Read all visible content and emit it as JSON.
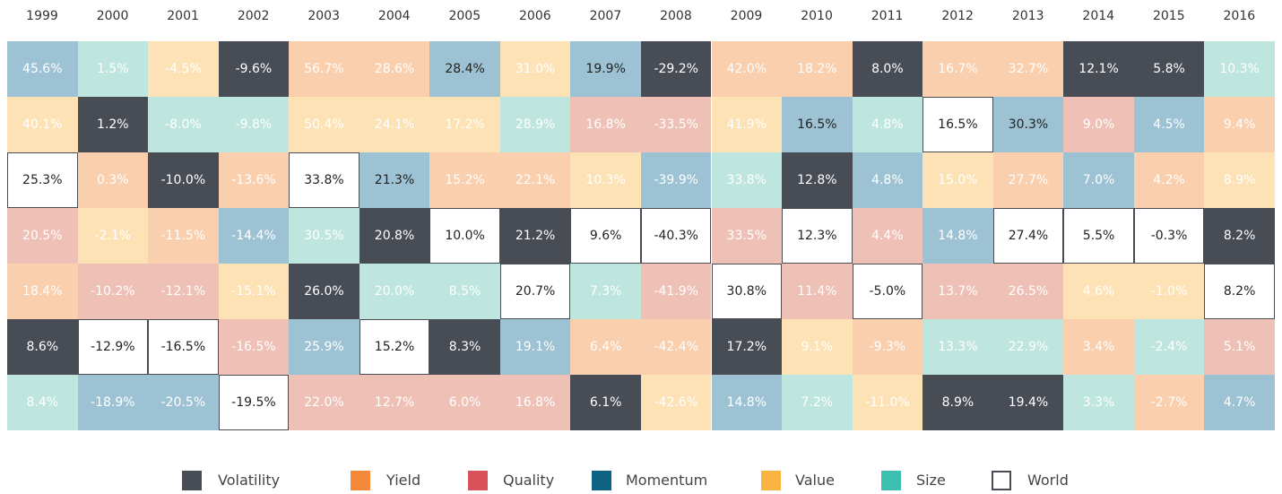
{
  "table": {
    "years": [
      "1999",
      "2000",
      "2001",
      "2002",
      "2003",
      "2004",
      "2005",
      "2006",
      "2007",
      "2008",
      "2009",
      "2010",
      "2011",
      "2012",
      "2013",
      "2014",
      "2015",
      "2016"
    ],
    "legend": [
      {
        "name": "Volatility",
        "color": "#474c55",
        "tint": "#474c55"
      },
      {
        "name": "Yield",
        "color": "#f5883b",
        "tint": "#f9cfae"
      },
      {
        "name": "Quality",
        "color": "#d9525a",
        "tint": "#efc0b6"
      },
      {
        "name": "Momentum",
        "color": "#0f6382",
        "tint": "#9dc2d4"
      },
      {
        "name": "Value",
        "color": "#f9b441",
        "tint": "#fde2b6"
      },
      {
        "name": "Size",
        "color": "#3dbfb2",
        "tint": "#bfe5df"
      },
      {
        "name": "World",
        "color": "#ffffff",
        "tint": "#ffffff"
      }
    ],
    "columns": [
      [
        [
          "45.6%",
          3
        ],
        [
          "40.1%",
          4
        ],
        [
          "25.3%",
          6
        ],
        [
          "20.5%",
          2
        ],
        [
          "18.4%",
          1
        ],
        [
          "8.6%",
          0
        ],
        [
          "8.4%",
          5
        ]
      ],
      [
        [
          "1.5%",
          5
        ],
        [
          "1.2%",
          0
        ],
        [
          "0.3%",
          1
        ],
        [
          "-2.1%",
          4
        ],
        [
          "-10.2%",
          2
        ],
        [
          "-12.9%",
          6
        ],
        [
          "-18.9%",
          3
        ]
      ],
      [
        [
          "-4.5%",
          4
        ],
        [
          "-8.0%",
          5
        ],
        [
          "-10.0%",
          0
        ],
        [
          "-11.5%",
          1
        ],
        [
          "-12.1%",
          2
        ],
        [
          "-16.5%",
          6
        ],
        [
          "-20.5%",
          3
        ]
      ],
      [
        [
          "-9.6%",
          0
        ],
        [
          "-9.8%",
          5
        ],
        [
          "-13.6%",
          1
        ],
        [
          "-14.4%",
          3
        ],
        [
          "-15.1%",
          4
        ],
        [
          "-16.5%",
          2
        ],
        [
          "-19.5%",
          6
        ]
      ],
      [
        [
          "56.7%",
          1
        ],
        [
          "50.4%",
          4
        ],
        [
          "33.8%",
          6
        ],
        [
          "30.5%",
          5
        ],
        [
          "26.0%",
          0
        ],
        [
          "25.9%",
          3
        ],
        [
          "22.0%",
          2
        ]
      ],
      [
        [
          "28.6%",
          1
        ],
        [
          "24.1%",
          4
        ],
        [
          "21.3%",
          3,
          1
        ],
        [
          "20.8%",
          0
        ],
        [
          "20.0%",
          5
        ],
        [
          "15.2%",
          6
        ],
        [
          "12.7%",
          2
        ]
      ],
      [
        [
          "28.4%",
          3,
          1
        ],
        [
          "17.2%",
          4
        ],
        [
          "15.2%",
          1
        ],
        [
          "10.0%",
          6
        ],
        [
          "8.5%",
          5
        ],
        [
          "8.3%",
          0
        ],
        [
          "6.0%",
          2
        ]
      ],
      [
        [
          "31.0%",
          4
        ],
        [
          "28.9%",
          5
        ],
        [
          "22.1%",
          1
        ],
        [
          "21.2%",
          0
        ],
        [
          "20.7%",
          6
        ],
        [
          "19.1%",
          3
        ],
        [
          "16.8%",
          2
        ]
      ],
      [
        [
          "19.9%",
          3,
          1
        ],
        [
          "16.8%",
          2
        ],
        [
          "10.3%",
          4
        ],
        [
          "9.6%",
          6
        ],
        [
          "7.3%",
          5
        ],
        [
          "6.4%",
          1
        ],
        [
          "6.1%",
          0
        ]
      ],
      [
        [
          "-29.2%",
          0
        ],
        [
          "-33.5%",
          2
        ],
        [
          "-39.9%",
          3
        ],
        [
          "-40.3%",
          6
        ],
        [
          "-41.9%",
          2
        ],
        [
          "-42.4%",
          1
        ],
        [
          "-42.6%",
          4
        ]
      ],
      [
        [
          "42.0%",
          1
        ],
        [
          "41.9%",
          4
        ],
        [
          "33.8%",
          5
        ],
        [
          "33.5%",
          2
        ],
        [
          "30.8%",
          6
        ],
        [
          "17.2%",
          0
        ],
        [
          "14.8%",
          3
        ]
      ],
      [
        [
          "18.2%",
          1
        ],
        [
          "16.5%",
          3,
          1
        ],
        [
          "12.8%",
          0
        ],
        [
          "12.3%",
          6
        ],
        [
          "11.4%",
          2
        ],
        [
          "9.1%",
          4
        ],
        [
          "7.2%",
          5
        ]
      ],
      [
        [
          "8.0%",
          0
        ],
        [
          "4.8%",
          5
        ],
        [
          "4.8%",
          3
        ],
        [
          "4.4%",
          2
        ],
        [
          "-5.0%",
          6
        ],
        [
          "-9.3%",
          1
        ],
        [
          "-11.0%",
          4
        ]
      ],
      [
        [
          "16.7%",
          1
        ],
        [
          "16.5%",
          6
        ],
        [
          "15.0%",
          4
        ],
        [
          "14.8%",
          3
        ],
        [
          "13.7%",
          2
        ],
        [
          "13.3%",
          5
        ],
        [
          "8.9%",
          0
        ]
      ],
      [
        [
          "32.7%",
          1
        ],
        [
          "30.3%",
          3,
          1
        ],
        [
          "27.7%",
          1
        ],
        [
          "27.4%",
          6
        ],
        [
          "26.5%",
          2
        ],
        [
          "22.9%",
          5
        ],
        [
          "19.4%",
          0
        ]
      ],
      [
        [
          "12.1%",
          0
        ],
        [
          "9.0%",
          2
        ],
        [
          "7.0%",
          3
        ],
        [
          "5.5%",
          6
        ],
        [
          "4.6%",
          4
        ],
        [
          "3.4%",
          1
        ],
        [
          "3.3%",
          5
        ]
      ],
      [
        [
          "5.8%",
          0
        ],
        [
          "4.5%",
          3
        ],
        [
          "4.2%",
          1
        ],
        [
          "-0.3%",
          6
        ],
        [
          "-1.0%",
          4
        ],
        [
          "-2.4%",
          5
        ],
        [
          "-2.7%",
          1
        ]
      ],
      [
        [
          "10.3%",
          5
        ],
        [
          "9.4%",
          1
        ],
        [
          "8.9%",
          4
        ],
        [
          "8.2%",
          0
        ],
        [
          "8.2%",
          6
        ],
        [
          "5.1%",
          2
        ],
        [
          "4.7%",
          3
        ]
      ]
    ]
  }
}
